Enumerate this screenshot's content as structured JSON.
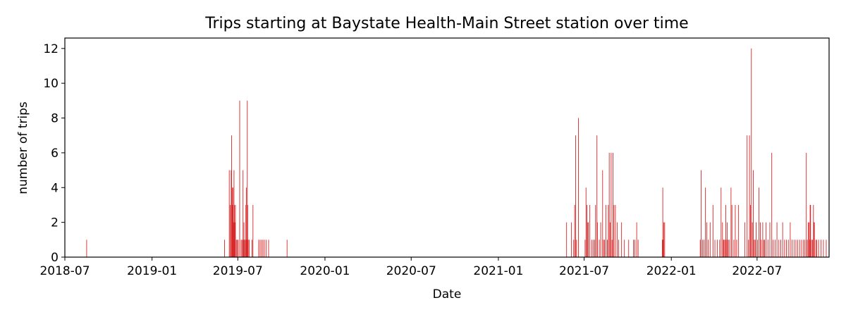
{
  "chart_data": {
    "type": "bar",
    "title": "Trips starting at Baystate Health-Main Street station over time",
    "xlabel": "Date",
    "ylabel": "number of trips",
    "bar_color": "#d62728",
    "grid": false,
    "legend": "none",
    "xlim": [
      "2018-07-01",
      "2022-11-30"
    ],
    "ylim": [
      0,
      12.6
    ],
    "x_ticks": [
      "2018-07-01",
      "2019-01-01",
      "2019-07-01",
      "2020-01-01",
      "2020-07-01",
      "2021-01-01",
      "2021-07-01",
      "2022-01-01",
      "2022-07-01"
    ],
    "x_tick_labels": [
      "2018-07",
      "2019-01",
      "2019-07",
      "2020-01",
      "2020-07",
      "2021-01",
      "2021-07",
      "2022-01",
      "2022-07"
    ],
    "y_ticks": [
      0,
      2,
      4,
      6,
      8,
      10,
      12
    ],
    "y_tick_labels": [
      "0",
      "2",
      "4",
      "6",
      "8",
      "10",
      "12"
    ],
    "points": [
      [
        "2018-08-16",
        1
      ],
      [
        "2019-06-03",
        1
      ],
      [
        "2019-06-13",
        5
      ],
      [
        "2019-06-15",
        3
      ],
      [
        "2019-06-17",
        5
      ],
      [
        "2019-06-18",
        7
      ],
      [
        "2019-06-19",
        4
      ],
      [
        "2019-06-20",
        3
      ],
      [
        "2019-06-21",
        4
      ],
      [
        "2019-06-22",
        2
      ],
      [
        "2019-06-23",
        5
      ],
      [
        "2019-06-24",
        3
      ],
      [
        "2019-06-25",
        2
      ],
      [
        "2019-06-26",
        3
      ],
      [
        "2019-06-28",
        1
      ],
      [
        "2019-06-30",
        1
      ],
      [
        "2019-07-02",
        1
      ],
      [
        "2019-07-05",
        9
      ],
      [
        "2019-07-08",
        1
      ],
      [
        "2019-07-10",
        1
      ],
      [
        "2019-07-12",
        5
      ],
      [
        "2019-07-13",
        1
      ],
      [
        "2019-07-14",
        2
      ],
      [
        "2019-07-15",
        1
      ],
      [
        "2019-07-17",
        1
      ],
      [
        "2019-07-18",
        3
      ],
      [
        "2019-07-19",
        4
      ],
      [
        "2019-07-20",
        1
      ],
      [
        "2019-07-21",
        9
      ],
      [
        "2019-07-22",
        3
      ],
      [
        "2019-07-23",
        1
      ],
      [
        "2019-07-25",
        1
      ],
      [
        "2019-07-31",
        1
      ],
      [
        "2019-08-02",
        3
      ],
      [
        "2019-08-14",
        1
      ],
      [
        "2019-08-17",
        1
      ],
      [
        "2019-08-20",
        1
      ],
      [
        "2019-08-23",
        1
      ],
      [
        "2019-08-26",
        1
      ],
      [
        "2019-08-30",
        1
      ],
      [
        "2019-09-04",
        1
      ],
      [
        "2019-10-13",
        1
      ],
      [
        "2021-05-25",
        2
      ],
      [
        "2021-06-04",
        2
      ],
      [
        "2021-06-09",
        1
      ],
      [
        "2021-06-11",
        3
      ],
      [
        "2021-06-13",
        7
      ],
      [
        "2021-06-15",
        1
      ],
      [
        "2021-06-19",
        8
      ],
      [
        "2021-07-03",
        1
      ],
      [
        "2021-07-05",
        4
      ],
      [
        "2021-07-07",
        3
      ],
      [
        "2021-07-08",
        2
      ],
      [
        "2021-07-10",
        2
      ],
      [
        "2021-07-13",
        3
      ],
      [
        "2021-07-17",
        1
      ],
      [
        "2021-07-20",
        1
      ],
      [
        "2021-07-23",
        1
      ],
      [
        "2021-07-25",
        3
      ],
      [
        "2021-07-28",
        7
      ],
      [
        "2021-07-29",
        2
      ],
      [
        "2021-08-02",
        1
      ],
      [
        "2021-08-05",
        2
      ],
      [
        "2021-08-09",
        5
      ],
      [
        "2021-08-11",
        1
      ],
      [
        "2021-08-13",
        1
      ],
      [
        "2021-08-16",
        3
      ],
      [
        "2021-08-19",
        1
      ],
      [
        "2021-08-21",
        3
      ],
      [
        "2021-08-23",
        6
      ],
      [
        "2021-08-25",
        2
      ],
      [
        "2021-08-27",
        6
      ],
      [
        "2021-08-29",
        1
      ],
      [
        "2021-08-31",
        6
      ],
      [
        "2021-09-02",
        3
      ],
      [
        "2021-09-05",
        3
      ],
      [
        "2021-09-09",
        2
      ],
      [
        "2021-09-12",
        1
      ],
      [
        "2021-09-18",
        2
      ],
      [
        "2021-09-24",
        1
      ],
      [
        "2021-10-03",
        1
      ],
      [
        "2021-10-13",
        1
      ],
      [
        "2021-10-16",
        1
      ],
      [
        "2021-10-20",
        2
      ],
      [
        "2021-10-23",
        1
      ],
      [
        "2021-12-13",
        1
      ],
      [
        "2021-12-14",
        4
      ],
      [
        "2021-12-15",
        1
      ],
      [
        "2021-12-16",
        2
      ],
      [
        "2021-12-18",
        2
      ],
      [
        "2022-03-03",
        1
      ],
      [
        "2022-03-05",
        5
      ],
      [
        "2022-03-08",
        1
      ],
      [
        "2022-03-11",
        1
      ],
      [
        "2022-03-14",
        4
      ],
      [
        "2022-03-17",
        2
      ],
      [
        "2022-03-20",
        1
      ],
      [
        "2022-03-24",
        2
      ],
      [
        "2022-03-30",
        3
      ],
      [
        "2022-04-03",
        1
      ],
      [
        "2022-04-08",
        1
      ],
      [
        "2022-04-13",
        1
      ],
      [
        "2022-04-16",
        4
      ],
      [
        "2022-04-19",
        2
      ],
      [
        "2022-04-21",
        1
      ],
      [
        "2022-04-22",
        1
      ],
      [
        "2022-04-24",
        1
      ],
      [
        "2022-04-26",
        3
      ],
      [
        "2022-04-27",
        1
      ],
      [
        "2022-04-29",
        2
      ],
      [
        "2022-05-01",
        1
      ],
      [
        "2022-05-03",
        1
      ],
      [
        "2022-05-07",
        4
      ],
      [
        "2022-05-09",
        3
      ],
      [
        "2022-05-13",
        1
      ],
      [
        "2022-05-16",
        3
      ],
      [
        "2022-05-19",
        1
      ],
      [
        "2022-05-23",
        3
      ],
      [
        "2022-06-05",
        2
      ],
      [
        "2022-06-10",
        7
      ],
      [
        "2022-06-13",
        1
      ],
      [
        "2022-06-15",
        7
      ],
      [
        "2022-06-17",
        3
      ],
      [
        "2022-06-19",
        12
      ],
      [
        "2022-06-21",
        2
      ],
      [
        "2022-06-23",
        5
      ],
      [
        "2022-06-25",
        1
      ],
      [
        "2022-06-27",
        1
      ],
      [
        "2022-06-29",
        2
      ],
      [
        "2022-07-02",
        1
      ],
      [
        "2022-07-05",
        4
      ],
      [
        "2022-07-08",
        2
      ],
      [
        "2022-07-10",
        1
      ],
      [
        "2022-07-13",
        2
      ],
      [
        "2022-07-15",
        1
      ],
      [
        "2022-07-17",
        1
      ],
      [
        "2022-07-20",
        2
      ],
      [
        "2022-07-24",
        1
      ],
      [
        "2022-07-28",
        2
      ],
      [
        "2022-08-01",
        6
      ],
      [
        "2022-08-04",
        1
      ],
      [
        "2022-08-08",
        1
      ],
      [
        "2022-08-12",
        2
      ],
      [
        "2022-08-16",
        1
      ],
      [
        "2022-08-20",
        1
      ],
      [
        "2022-08-24",
        2
      ],
      [
        "2022-08-28",
        1
      ],
      [
        "2022-09-01",
        1
      ],
      [
        "2022-09-05",
        1
      ],
      [
        "2022-09-09",
        2
      ],
      [
        "2022-09-13",
        1
      ],
      [
        "2022-09-17",
        1
      ],
      [
        "2022-09-21",
        1
      ],
      [
        "2022-09-25",
        1
      ],
      [
        "2022-09-29",
        1
      ],
      [
        "2022-10-03",
        1
      ],
      [
        "2022-10-07",
        1
      ],
      [
        "2022-10-10",
        1
      ],
      [
        "2022-10-13",
        6
      ],
      [
        "2022-10-15",
        1
      ],
      [
        "2022-10-17",
        2
      ],
      [
        "2022-10-19",
        2
      ],
      [
        "2022-10-20",
        1
      ],
      [
        "2022-10-21",
        3
      ],
      [
        "2022-10-22",
        3
      ],
      [
        "2022-10-24",
        1
      ],
      [
        "2022-10-26",
        1
      ],
      [
        "2022-10-28",
        3
      ],
      [
        "2022-10-29",
        2
      ],
      [
        "2022-10-30",
        2
      ],
      [
        "2022-11-02",
        1
      ],
      [
        "2022-11-04",
        1
      ],
      [
        "2022-11-08",
        1
      ],
      [
        "2022-11-13",
        1
      ],
      [
        "2022-11-18",
        1
      ],
      [
        "2022-11-24",
        1
      ]
    ]
  }
}
